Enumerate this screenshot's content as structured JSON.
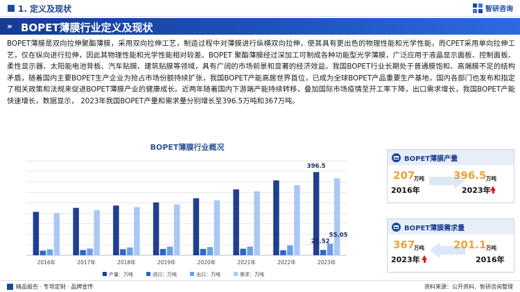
{
  "header": {
    "section_title": "1. 定义及现状",
    "logo_text": "智研咨询"
  },
  "banner": {
    "title": "BOPET薄膜行业定义及现状"
  },
  "intro": {
    "text": "BOPET薄膜是双向拉伸聚酯薄膜，采用双向拉伸工艺，制造过程中对薄膜进行纵横双向拉伸，使其具有更出色的物理性能和光学性能，而CPET采用单向拉伸工艺，仅在纵向进行拉伸，因此其物理性能和光学性能相对较差。BOPET 聚酯薄膜经过深加工可制成各种功能型光学薄膜，广泛应用于液晶显示面板、控制面板、柔性显示器、太阳能电池背板、汽车贴膜、建筑贴膜等领域，具有广阔的市场前景和显著的经济效益。我国BOPET行业长期处于普通膜饱和、高端膜不足的结构矛盾，随着国内主要BOPET生产企业为抢占市场份额持续扩张，我国BOPET产能高居世界首位，已成为全球BOPET产品重要生产基地，国内各部门也发布和指定了相关政策和法规来促进BOPET薄膜产业的健康成长。近两年随着国内下游端产能持续转移，叠加国际市场疫情至开工率下降，出口需求增长，我国BOPET产能快速增长，数据显示， 2023年我国BOPET产量和需求量分别增长至396.5万吨和367万吨。"
  },
  "chart_data": {
    "type": "bar",
    "title": "BOPET薄膜行业概况",
    "categories": [
      "2016年",
      "2017年",
      "2018年",
      "2019年",
      "2020年",
      "2021年",
      "2022年",
      "2023年"
    ],
    "series": [
      {
        "name": "产量：万吨",
        "color": "#1f3f8f",
        "values": [
          207,
          226,
          237,
          252,
          272,
          314,
          357,
          396.5
        ]
      },
      {
        "name": "进口：万吨",
        "color": "#2f67c4",
        "values": [
          22,
          25,
          29,
          30,
          30,
          31,
          24,
          25.52
        ]
      },
      {
        "name": "出口：万吨",
        "color": "#6b9ee8",
        "values": [
          28,
          32,
          37,
          41,
          39,
          41,
          47,
          55.05
        ]
      },
      {
        "name": "需求：万吨",
        "color": "#a9c9f4",
        "values": [
          201,
          215,
          230,
          242,
          262,
          305,
          334,
          367
        ]
      }
    ],
    "data_labels": [
      {
        "text": "396.5"
      },
      {
        "text": "25.52"
      },
      {
        "text": "55.05"
      }
    ],
    "ylim": [
      0,
      450
    ],
    "grid": true,
    "legend": "bottom"
  },
  "cards": {
    "production": {
      "title": "BOPET薄膜产量",
      "from_value": "207",
      "from_unit": "万吨",
      "from_year": "2016年",
      "to_value": "396.5",
      "to_unit": "万吨",
      "to_year": "2023年"
    },
    "demand": {
      "title": "BOPET薄膜需求量",
      "from_value": "367",
      "from_unit": "万吨",
      "from_year": "2023年",
      "to_value": "201.1",
      "to_unit": "万吨",
      "to_year": "2016年"
    }
  },
  "footer": {
    "left_text": "精品报告 · 专项定制 · 品牌宣传",
    "source_text": "资料来源：公开资料、智研咨询整理"
  }
}
